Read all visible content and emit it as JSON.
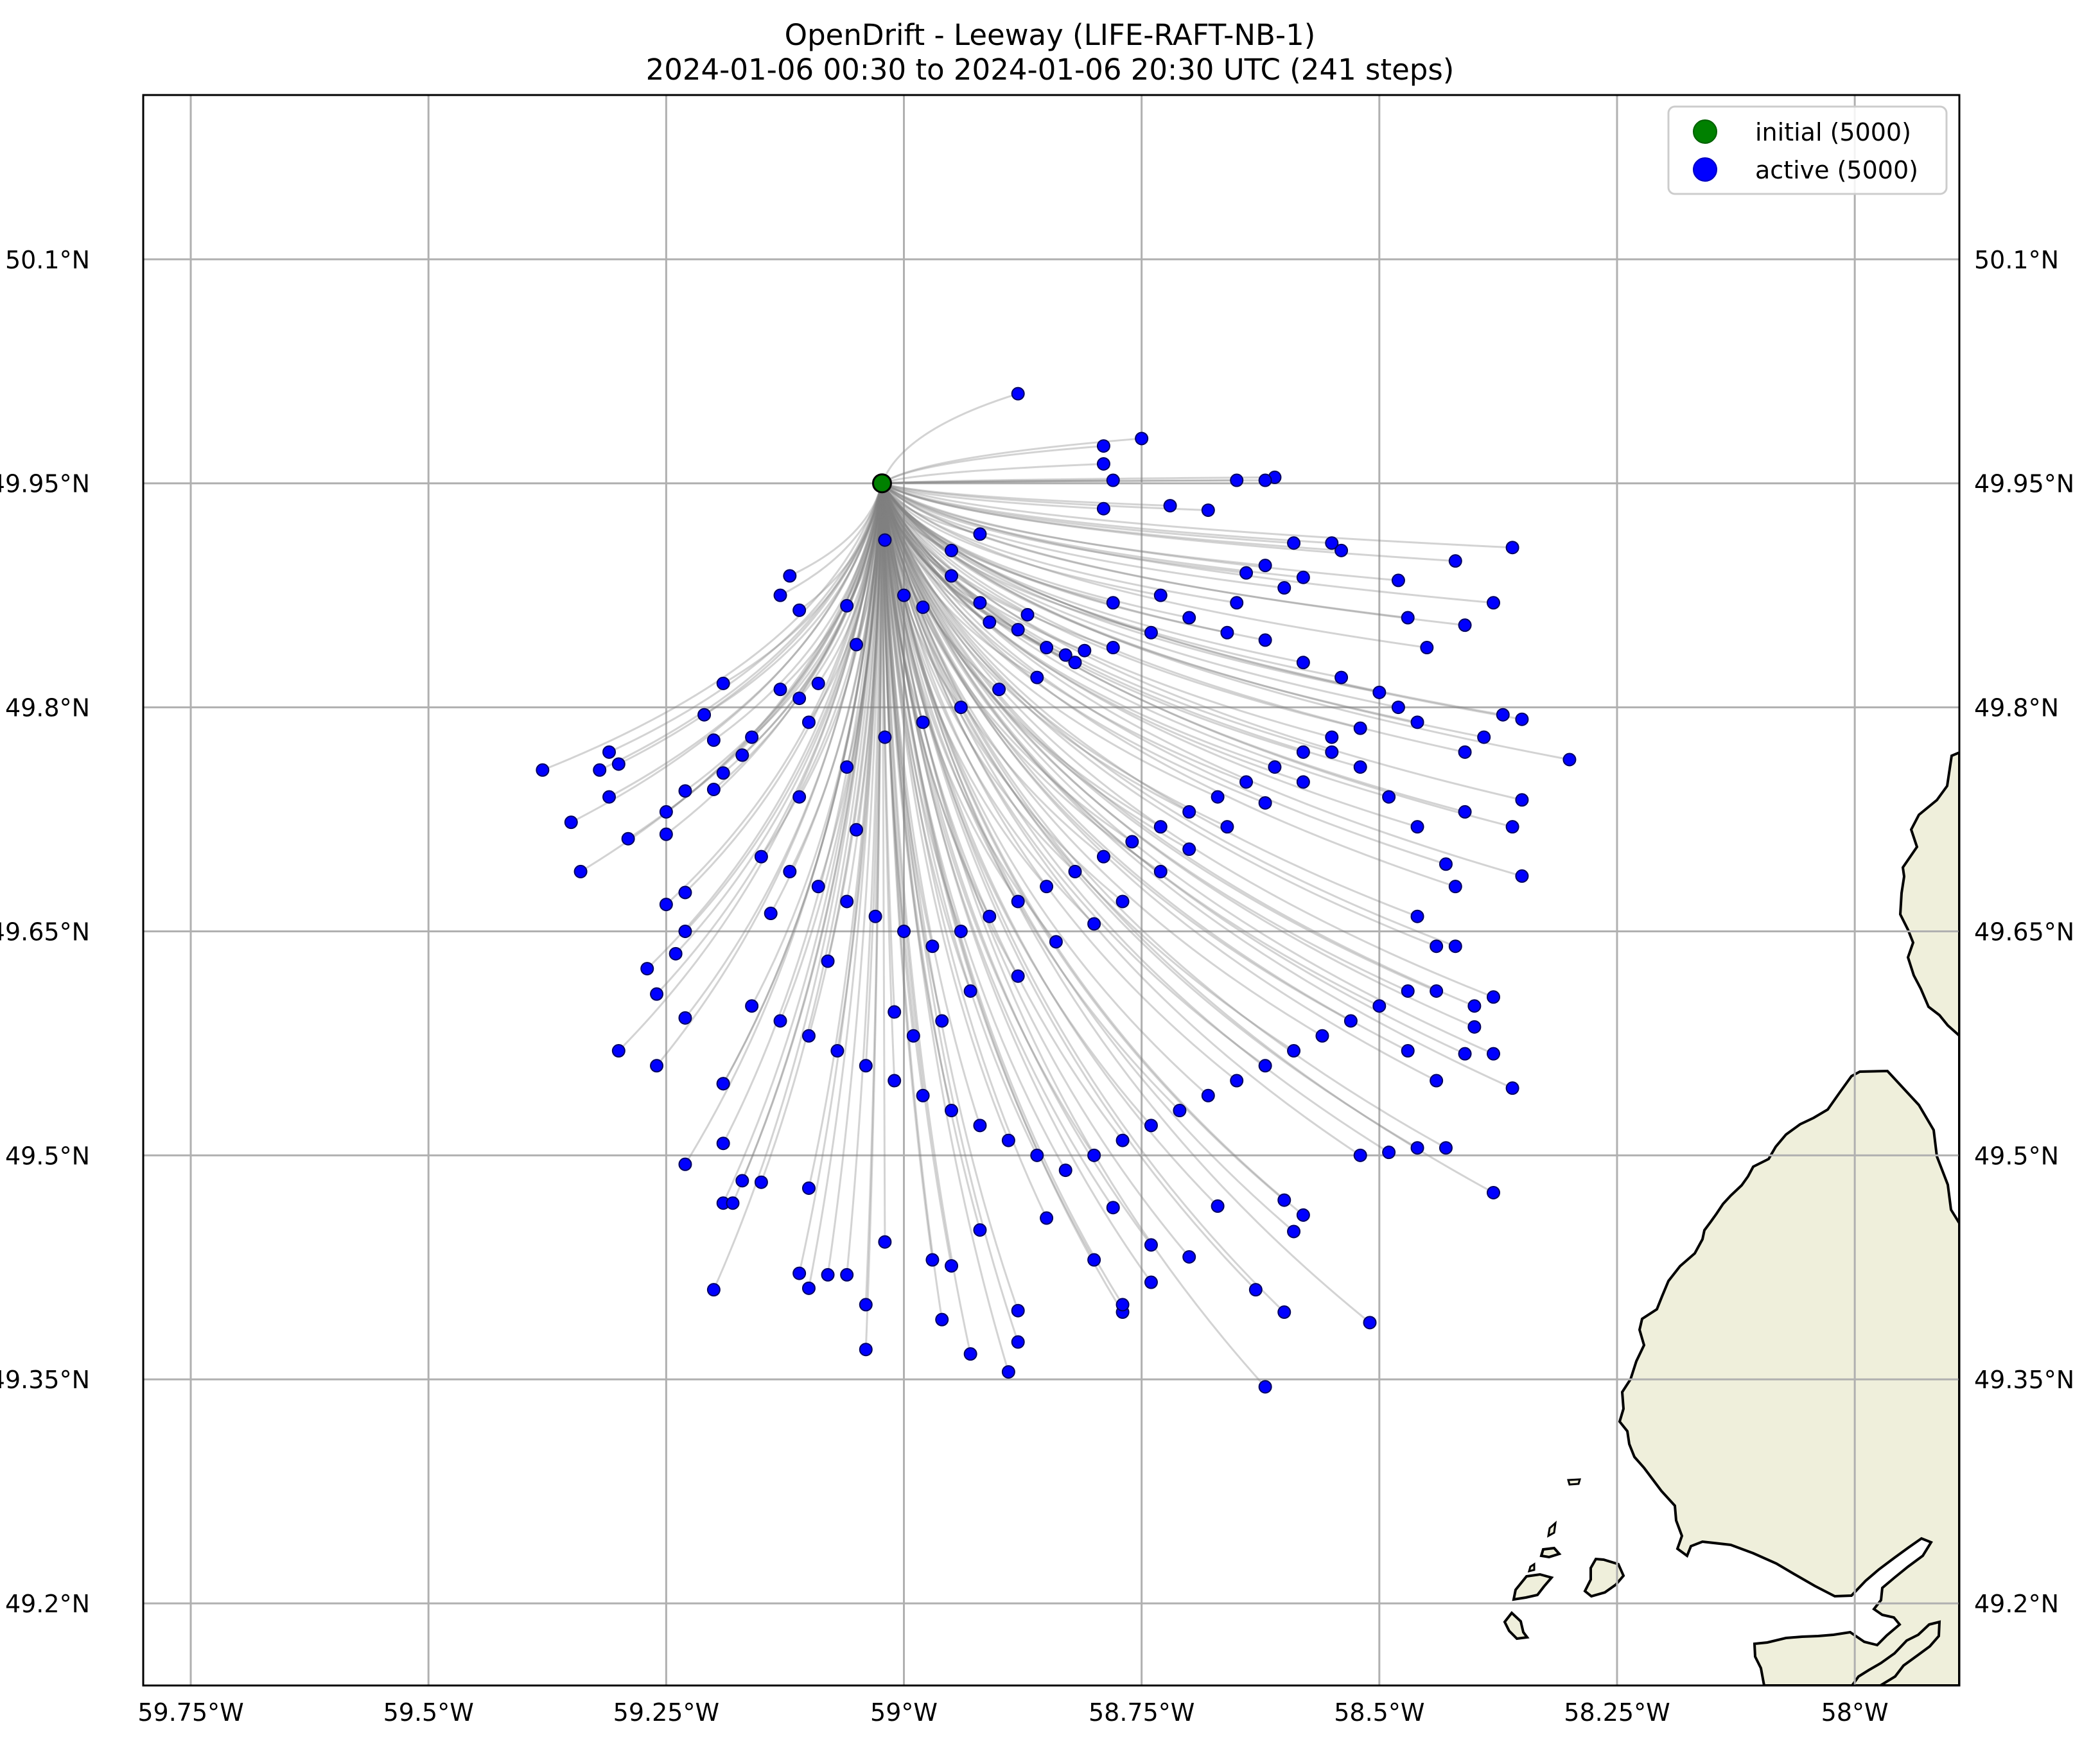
{
  "title": "OpenDrift - Leeway (LIFE-RAFT-NB-1)",
  "subtitle": "2024-01-06 00:30 to 2024-01-06 20:30 UTC (241 steps)",
  "legend": [
    {
      "label": "initial (5000)",
      "color": "#008000"
    },
    {
      "label": "active (5000)",
      "color": "#0000ff"
    }
  ],
  "colors": {
    "land": "#efefdb",
    "grid": "#b0b0b0",
    "trajectory": "#808080",
    "initial": "#008000",
    "active": "#0000ff"
  },
  "map": {
    "lon_range": [
      -59.8,
      -57.89
    ],
    "lat_range": [
      49.145,
      50.21
    ],
    "lon_ticks": [
      {
        "value": -59.75,
        "label": "59.75°W"
      },
      {
        "value": -59.5,
        "label": "59.5°W"
      },
      {
        "value": -59.25,
        "label": "59.25°W"
      },
      {
        "value": -59.0,
        "label": "59°W"
      },
      {
        "value": -58.75,
        "label": "58.75°W"
      },
      {
        "value": -58.5,
        "label": "58.5°W"
      },
      {
        "value": -58.25,
        "label": "58.25°W"
      },
      {
        "value": -58.0,
        "label": "58°W"
      }
    ],
    "lat_ticks": [
      {
        "value": 50.1,
        "label": "50.1°N"
      },
      {
        "value": 49.95,
        "label": "49.95°N"
      },
      {
        "value": 49.8,
        "label": "49.8°N"
      },
      {
        "value": 49.65,
        "label": "49.65°N"
      },
      {
        "value": 49.5,
        "label": "49.5°N"
      },
      {
        "value": 49.35,
        "label": "49.35°N"
      },
      {
        "value": 49.2,
        "label": "49.2°N"
      }
    ],
    "initial_position": [
      -59.023,
      49.95
    ],
    "active_positions": [
      [
        -58.88,
        50.01
      ],
      [
        -58.75,
        49.98
      ],
      [
        -58.79,
        49.975
      ],
      [
        -58.79,
        49.963
      ],
      [
        -58.78,
        49.952
      ],
      [
        -58.65,
        49.952
      ],
      [
        -58.61,
        49.954
      ],
      [
        -58.62,
        49.952
      ],
      [
        -58.68,
        49.932
      ],
      [
        -58.72,
        49.935
      ],
      [
        -58.79,
        49.933
      ],
      [
        -58.92,
        49.916
      ],
      [
        -58.95,
        49.905
      ],
      [
        -58.54,
        49.905
      ],
      [
        -58.36,
        49.907
      ],
      [
        -58.42,
        49.898
      ],
      [
        -58.55,
        49.91
      ],
      [
        -58.59,
        49.91
      ],
      [
        -58.48,
        49.885
      ],
      [
        -58.38,
        49.87
      ],
      [
        -58.47,
        49.86
      ],
      [
        -58.41,
        49.855
      ],
      [
        -58.45,
        49.84
      ],
      [
        -58.37,
        49.795
      ],
      [
        -58.35,
        49.792
      ],
      [
        -58.39,
        49.78
      ],
      [
        -58.41,
        49.77
      ],
      [
        -58.3,
        49.765
      ],
      [
        -58.35,
        49.738
      ],
      [
        -58.36,
        49.72
      ],
      [
        -58.41,
        49.73
      ],
      [
        -58.43,
        49.695
      ],
      [
        -58.42,
        49.68
      ],
      [
        -58.35,
        49.687
      ],
      [
        -58.46,
        49.66
      ],
      [
        -58.44,
        49.64
      ],
      [
        -58.42,
        49.64
      ],
      [
        -58.4,
        49.6
      ],
      [
        -58.44,
        49.61
      ],
      [
        -58.38,
        49.606
      ],
      [
        -58.4,
        49.586
      ],
      [
        -58.41,
        49.568
      ],
      [
        -58.38,
        49.568
      ],
      [
        -58.36,
        49.545
      ],
      [
        -58.44,
        49.55
      ],
      [
        -58.47,
        49.57
      ],
      [
        -58.46,
        49.505
      ],
      [
        -58.43,
        49.505
      ],
      [
        -58.49,
        49.502
      ],
      [
        -58.52,
        49.5
      ],
      [
        -58.38,
        49.475
      ],
      [
        -58.51,
        49.388
      ],
      [
        -58.62,
        49.345
      ],
      [
        -58.6,
        49.395
      ],
      [
        -58.63,
        49.41
      ],
      [
        -58.74,
        49.415
      ],
      [
        -58.7,
        49.432
      ],
      [
        -58.77,
        49.395
      ],
      [
        -58.77,
        49.4
      ],
      [
        -58.8,
        49.43
      ],
      [
        -58.88,
        49.396
      ],
      [
        -58.88,
        49.375
      ],
      [
        -58.89,
        49.355
      ],
      [
        -58.93,
        49.367
      ],
      [
        -58.96,
        49.39
      ],
      [
        -59.04,
        49.37
      ],
      [
        -59.04,
        49.4
      ],
      [
        -59.06,
        49.42
      ],
      [
        -59.08,
        49.42
      ],
      [
        -59.1,
        49.411
      ],
      [
        -59.11,
        49.421
      ],
      [
        -59.2,
        49.41
      ],
      [
        -59.19,
        49.468
      ],
      [
        -59.18,
        49.468
      ],
      [
        -59.23,
        49.494
      ],
      [
        -59.17,
        49.483
      ],
      [
        -59.15,
        49.482
      ],
      [
        -59.19,
        49.508
      ],
      [
        -59.1,
        49.478
      ],
      [
        -59.02,
        49.442
      ],
      [
        -58.97,
        49.43
      ],
      [
        -58.95,
        49.426
      ],
      [
        -58.92,
        49.45
      ],
      [
        -58.85,
        49.458
      ],
      [
        -58.78,
        49.465
      ],
      [
        -58.74,
        49.44
      ],
      [
        -58.67,
        49.466
      ],
      [
        -58.6,
        49.47
      ],
      [
        -58.58,
        49.46
      ],
      [
        -58.59,
        49.449
      ],
      [
        -59.3,
        49.57
      ],
      [
        -59.26,
        49.56
      ],
      [
        -59.23,
        49.592
      ],
      [
        -59.19,
        49.548
      ],
      [
        -59.19,
        49.548
      ],
      [
        -59.26,
        49.608
      ],
      [
        -59.27,
        49.625
      ],
      [
        -59.24,
        49.635
      ],
      [
        -59.23,
        49.65
      ],
      [
        -59.25,
        49.668
      ],
      [
        -59.23,
        49.676
      ],
      [
        -59.29,
        49.712
      ],
      [
        -59.25,
        49.715
      ],
      [
        -59.23,
        49.744
      ],
      [
        -59.25,
        49.73
      ],
      [
        -59.2,
        49.745
      ],
      [
        -59.19,
        49.756
      ],
      [
        -59.17,
        49.768
      ],
      [
        -59.16,
        49.78
      ],
      [
        -59.2,
        49.778
      ],
      [
        -59.21,
        49.795
      ],
      [
        -59.19,
        49.816
      ],
      [
        -59.38,
        49.758
      ],
      [
        -59.31,
        49.77
      ],
      [
        -59.3,
        49.762
      ],
      [
        -59.32,
        49.758
      ],
      [
        -59.31,
        49.74
      ],
      [
        -59.35,
        49.723
      ],
      [
        -59.34,
        49.69
      ],
      [
        -59.13,
        49.875
      ],
      [
        -59.11,
        49.865
      ],
      [
        -59.12,
        49.888
      ],
      [
        -59.05,
        49.842
      ],
      [
        -59.06,
        49.868
      ],
      [
        -59.02,
        49.912
      ],
      [
        -59.0,
        49.875
      ],
      [
        -58.98,
        49.867
      ],
      [
        -59.13,
        49.812
      ],
      [
        -59.11,
        49.806
      ],
      [
        -59.09,
        49.816
      ],
      [
        -59.1,
        49.79
      ],
      [
        -58.95,
        49.888
      ],
      [
        -58.92,
        49.87
      ],
      [
        -58.91,
        49.857
      ],
      [
        -58.88,
        49.852
      ],
      [
        -58.87,
        49.862
      ],
      [
        -58.85,
        49.84
      ],
      [
        -58.83,
        49.835
      ],
      [
        -58.81,
        49.838
      ],
      [
        -58.78,
        49.87
      ],
      [
        -58.73,
        49.875
      ],
      [
        -58.65,
        49.87
      ],
      [
        -58.6,
        49.88
      ],
      [
        -58.58,
        49.887
      ],
      [
        -58.62,
        49.895
      ],
      [
        -58.64,
        49.89
      ],
      [
        -59.05,
        49.718
      ],
      [
        -59.14,
        49.662
      ],
      [
        -59.08,
        49.63
      ],
      [
        -59.01,
        49.596
      ],
      [
        -58.99,
        49.58
      ],
      [
        -58.96,
        49.59
      ],
      [
        -58.93,
        49.61
      ],
      [
        -58.88,
        49.62
      ],
      [
        -58.84,
        49.643
      ],
      [
        -58.8,
        49.655
      ],
      [
        -58.77,
        49.67
      ],
      [
        -58.73,
        49.69
      ],
      [
        -58.7,
        49.705
      ],
      [
        -58.66,
        49.72
      ],
      [
        -58.62,
        49.736
      ],
      [
        -58.58,
        49.75
      ],
      [
        -58.55,
        49.77
      ],
      [
        -58.52,
        49.786
      ],
      [
        -58.48,
        49.8
      ],
      [
        -59.11,
        49.74
      ],
      [
        -59.06,
        49.76
      ],
      [
        -59.02,
        49.78
      ],
      [
        -58.98,
        49.79
      ],
      [
        -58.94,
        49.8
      ],
      [
        -58.9,
        49.812
      ],
      [
        -58.86,
        49.82
      ],
      [
        -58.82,
        49.83
      ],
      [
        -58.78,
        49.84
      ],
      [
        -58.74,
        49.85
      ],
      [
        -58.7,
        49.86
      ],
      [
        -58.66,
        49.85
      ],
      [
        -58.62,
        49.845
      ],
      [
        -58.58,
        49.83
      ],
      [
        -58.54,
        49.82
      ],
      [
        -58.5,
        49.81
      ],
      [
        -58.46,
        49.79
      ],
      [
        -59.15,
        49.7
      ],
      [
        -59.12,
        49.69
      ],
      [
        -59.09,
        49.68
      ],
      [
        -59.06,
        49.67
      ],
      [
        -59.03,
        49.66
      ],
      [
        -59.0,
        49.65
      ],
      [
        -58.97,
        49.64
      ],
      [
        -58.94,
        49.65
      ],
      [
        -58.91,
        49.66
      ],
      [
        -58.88,
        49.67
      ],
      [
        -58.85,
        49.68
      ],
      [
        -58.82,
        49.69
      ],
      [
        -58.79,
        49.7
      ],
      [
        -58.76,
        49.71
      ],
      [
        -58.73,
        49.72
      ],
      [
        -58.7,
        49.73
      ],
      [
        -58.67,
        49.74
      ],
      [
        -58.64,
        49.75
      ],
      [
        -58.61,
        49.76
      ],
      [
        -58.58,
        49.77
      ],
      [
        -58.55,
        49.78
      ],
      [
        -58.52,
        49.76
      ],
      [
        -58.49,
        49.74
      ],
      [
        -58.46,
        49.72
      ],
      [
        -59.16,
        49.6
      ],
      [
        -59.13,
        49.59
      ],
      [
        -59.1,
        49.58
      ],
      [
        -59.07,
        49.57
      ],
      [
        -59.04,
        49.56
      ],
      [
        -59.01,
        49.55
      ],
      [
        -58.98,
        49.54
      ],
      [
        -58.95,
        49.53
      ],
      [
        -58.92,
        49.52
      ],
      [
        -58.89,
        49.51
      ],
      [
        -58.86,
        49.5
      ],
      [
        -58.83,
        49.49
      ],
      [
        -58.8,
        49.5
      ],
      [
        -58.77,
        49.51
      ],
      [
        -58.74,
        49.52
      ],
      [
        -58.71,
        49.53
      ],
      [
        -58.68,
        49.54
      ],
      [
        -58.65,
        49.55
      ],
      [
        -58.62,
        49.56
      ],
      [
        -58.59,
        49.57
      ],
      [
        -58.56,
        49.58
      ],
      [
        -58.53,
        49.59
      ],
      [
        -58.5,
        49.6
      ],
      [
        -58.47,
        49.61
      ]
    ]
  }
}
